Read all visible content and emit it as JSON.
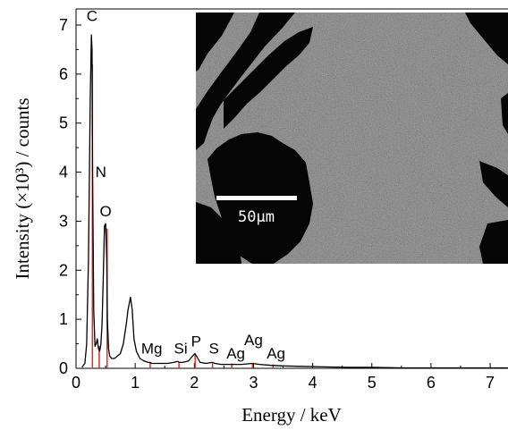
{
  "chart_data": {
    "type": "line",
    "xlabel": "Energy / keV",
    "ylabel": "Intensity (×10³) / counts",
    "xlim": [
      0,
      7.3
    ],
    "ylim": [
      0,
      7.3
    ],
    "xticks": [
      "0",
      "1",
      "2",
      "3",
      "4",
      "5",
      "6",
      "7"
    ],
    "yticks": [
      "0",
      "1",
      "2",
      "3",
      "4",
      "5",
      "6",
      "7"
    ],
    "spectrum": {
      "x": [
        0.1,
        0.15,
        0.18,
        0.21,
        0.24,
        0.26,
        0.27,
        0.28,
        0.3,
        0.32,
        0.34,
        0.36,
        0.38,
        0.4,
        0.42,
        0.44,
        0.46,
        0.48,
        0.5,
        0.52,
        0.53,
        0.55,
        0.57,
        0.6,
        0.65,
        0.7,
        0.75,
        0.8,
        0.85,
        0.88,
        0.92,
        0.95,
        0.98,
        1.02,
        1.08,
        1.15,
        1.22,
        1.25,
        1.28,
        1.35,
        1.45,
        1.55,
        1.65,
        1.72,
        1.75,
        1.8,
        1.9,
        1.97,
        2.01,
        2.05,
        2.1,
        2.2,
        2.3,
        2.35,
        2.45,
        2.6,
        2.8,
        2.98,
        3.1,
        3.3,
        3.5,
        3.8,
        4.2,
        4.6,
        5.0,
        5.5,
        6.0,
        6.5,
        7.0,
        7.3
      ],
      "y": [
        0.02,
        0.1,
        0.5,
        2.2,
        5.5,
        6.8,
        6.5,
        4.0,
        1.2,
        0.45,
        0.5,
        0.6,
        0.4,
        0.35,
        0.5,
        0.9,
        1.8,
        2.9,
        2.95,
        2.2,
        1.0,
        0.4,
        0.25,
        0.2,
        0.2,
        0.25,
        0.3,
        0.5,
        0.9,
        1.2,
        1.45,
        1.2,
        0.6,
        0.35,
        0.2,
        0.15,
        0.12,
        0.12,
        0.1,
        0.1,
        0.1,
        0.1,
        0.12,
        0.14,
        0.12,
        0.12,
        0.15,
        0.25,
        0.3,
        0.22,
        0.12,
        0.1,
        0.12,
        0.1,
        0.08,
        0.08,
        0.08,
        0.1,
        0.08,
        0.06,
        0.05,
        0.04,
        0.03,
        0.02,
        0.02,
        0.01,
        0.01,
        0.01,
        0.01,
        0.01
      ]
    },
    "peak_markers": [
      {
        "label": "C",
        "energy": 0.277,
        "height": 6.2
      },
      {
        "label": "N",
        "energy": 0.392,
        "height": 0.45
      },
      {
        "label": "O",
        "energy": 0.525,
        "height": 2.85
      },
      {
        "label": "Mg",
        "energy": 1.253,
        "height": 0.12
      },
      {
        "label": "Si",
        "energy": 1.74,
        "height": 0.12
      },
      {
        "label": "P",
        "energy": 2.013,
        "height": 0.28
      },
      {
        "label": "S",
        "energy": 2.307,
        "height": 0.1
      },
      {
        "label": "Ag",
        "energy": 2.633,
        "height": 0.1
      },
      {
        "label": "Ag",
        "energy": 2.983,
        "height": 0.1
      },
      {
        "label": "Ag",
        "energy": 3.33,
        "height": 0.08
      }
    ],
    "peak_labels": [
      {
        "text": "C",
        "x": 0.27,
        "y": 7.08
      },
      {
        "text": "N",
        "x": 0.42,
        "y": 3.9
      },
      {
        "text": "O",
        "x": 0.5,
        "y": 3.1
      },
      {
        "text": "Mg",
        "x": 1.28,
        "y": 0.3
      },
      {
        "text": "Si",
        "x": 1.77,
        "y": 0.3
      },
      {
        "text": "P",
        "x": 2.03,
        "y": 0.45
      },
      {
        "text": "S",
        "x": 2.33,
        "y": 0.3
      },
      {
        "text": "Ag",
        "x": 2.7,
        "y": 0.2
      },
      {
        "text": "Ag",
        "x": 3.0,
        "y": 0.47
      },
      {
        "text": "Ag",
        "x": 3.38,
        "y": 0.2
      }
    ],
    "colors": {
      "spectrum": "#000000",
      "markers": "#e0301e",
      "inset_background": "#7a7a7a"
    },
    "inset": {
      "scale_bar_label": "50µm"
    }
  }
}
